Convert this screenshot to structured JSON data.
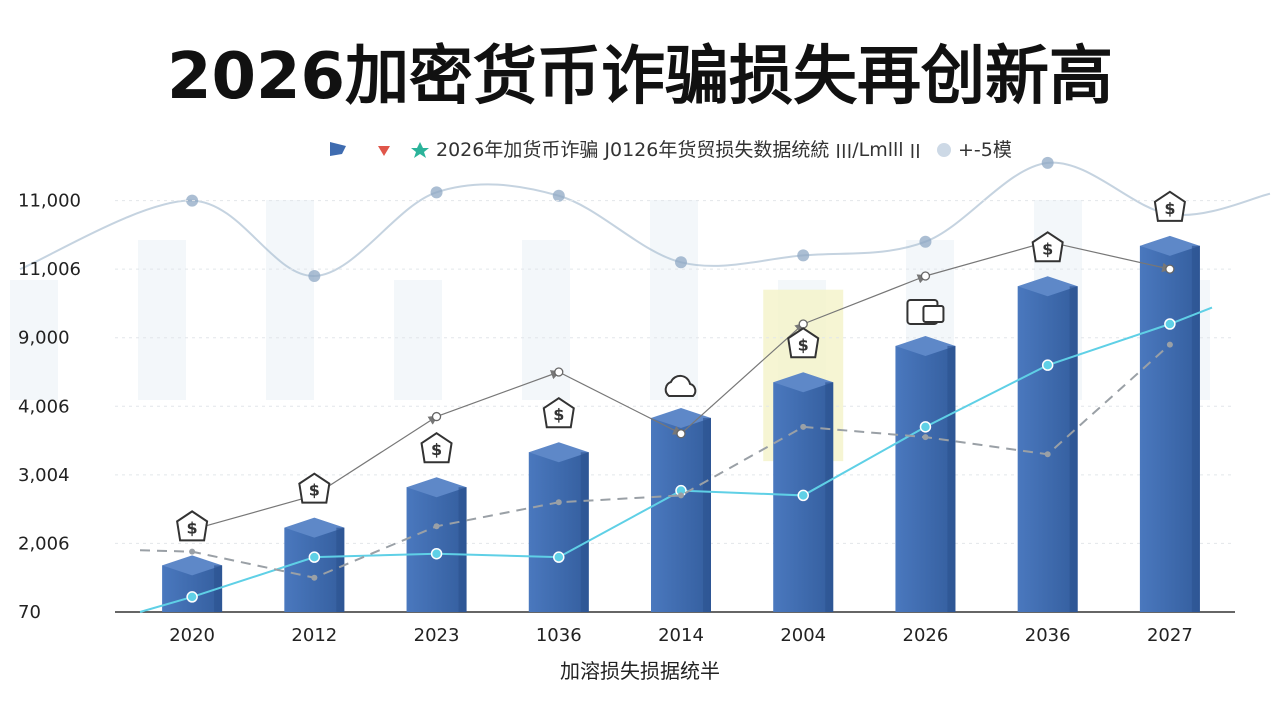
{
  "title": "2026加密货币诈骗损失再创新高",
  "legend": {
    "text": "2026年加货币诈骗 J0126年货贸损失数据统統 ׀׀׀/Lmlll ׀׀",
    "extra": "+-5模"
  },
  "colors": {
    "bar": "#3f6cb0",
    "bar_top": "#5e88c8",
    "bar_side": "#2c5190",
    "cyan_line": "#5fd0e6",
    "dashed_line": "#9aa0a6",
    "arrow_line": "#777777",
    "bg_line": "#9fb6cc",
    "highlight": "#f4f3c8"
  },
  "chart_data": {
    "type": "bar",
    "title": "2026加密货币诈骗损失再创新高",
    "xlabel": "加溶损失损据统半",
    "ylabel": "",
    "categories": [
      "2020",
      "2012",
      "2023",
      "1036",
      "2014",
      "2004",
      "2026",
      "2036",
      "2027"
    ],
    "y_tick_labels": [
      "70",
      "2,006",
      "3,004",
      "4,006",
      "9,000",
      "11,006",
      "11,000"
    ],
    "y_tick_positions": [
      0,
      1,
      2,
      3,
      4,
      5,
      6
    ],
    "ylim": [
      0,
      6.3
    ],
    "series": [
      {
        "values": [
          0.68,
          1.23,
          1.82,
          2.33,
          2.83,
          3.35,
          3.88,
          4.75,
          5.34
        ]
      },
      {
        "values": [
          0.22,
          0.8,
          0.85,
          0.8,
          1.77,
          1.7,
          2.7,
          3.6,
          4.2
        ]
      },
      {
        "values": [
          0.88,
          0.5,
          1.25,
          1.6,
          1.7,
          2.7,
          2.55,
          2.3,
          3.9
        ]
      },
      {
        "values": [
          1.2,
          1.7,
          2.85,
          3.5,
          2.6,
          4.2,
          4.9,
          5.4,
          5.0
        ]
      },
      {
        "values": [
          6.0,
          4.9,
          6.12,
          6.07,
          5.1,
          5.2,
          5.4,
          6.55,
          5.8
        ]
      }
    ],
    "grid": true,
    "legend_position": "top"
  }
}
